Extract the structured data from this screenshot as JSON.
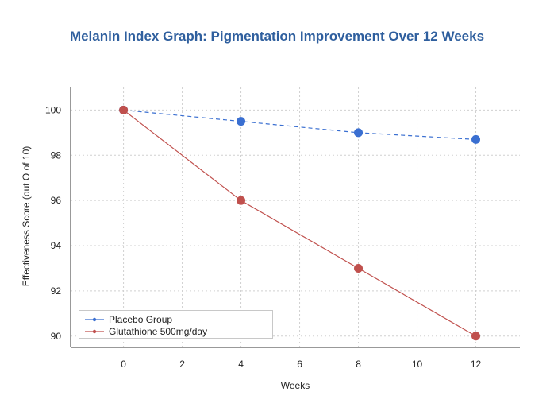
{
  "chart_data": {
    "type": "line",
    "title": "Melanin Index Graph: Pigmentation Improvement Over 12 Weeks",
    "xlabel": "Weeks",
    "ylabel": "Effectiveness Score (out O of 10)",
    "xlim": [
      -1.8,
      13.5
    ],
    "ylim": [
      89.5,
      101
    ],
    "xticks": [
      0,
      2,
      4,
      6,
      8,
      10,
      12
    ],
    "yticks": [
      90,
      92,
      94,
      96,
      98,
      100
    ],
    "grid": true,
    "legend_position": "bottom-left",
    "x": [
      0,
      4,
      8,
      12
    ],
    "series": [
      {
        "name": "Placebo Group",
        "values": [
          100,
          99.5,
          99,
          98.7
        ],
        "color": "#3a6fd1",
        "style": "dashed"
      },
      {
        "name": "Glutathione 500mg/day",
        "values": [
          100,
          96,
          93,
          90
        ],
        "color": "#c0504d",
        "style": "solid"
      }
    ]
  }
}
